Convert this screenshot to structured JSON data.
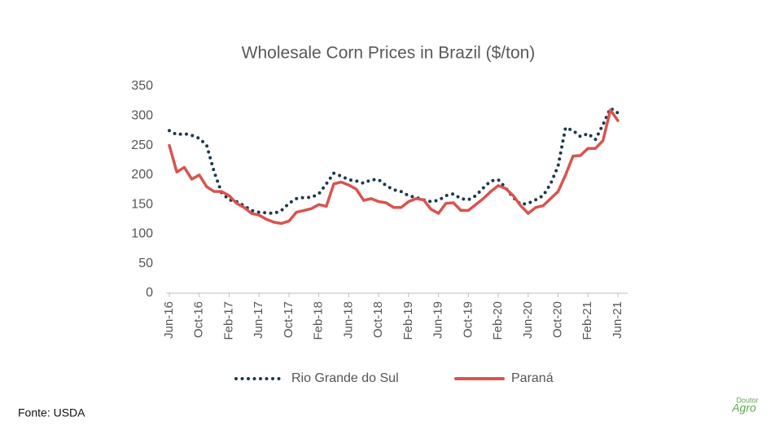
{
  "chart_data": {
    "type": "line",
    "title": "Wholesale Corn Prices in Brazil ($/ton)",
    "categories": [
      "Jun-16",
      null,
      null,
      null,
      "Oct-16",
      null,
      null,
      null,
      "Feb-17",
      null,
      null,
      null,
      "Jun-17",
      null,
      null,
      null,
      "Oct-17",
      null,
      null,
      null,
      "Feb-18",
      null,
      null,
      null,
      "Jun-18",
      null,
      null,
      null,
      "Oct-18",
      null,
      null,
      null,
      "Feb-19",
      null,
      null,
      null,
      "Jun-19",
      null,
      null,
      null,
      "Oct-19",
      null,
      null,
      null,
      "Feb-20",
      null,
      null,
      null,
      "Jun-20",
      null,
      null,
      null,
      "Oct-20",
      null,
      null,
      null,
      "Feb-21",
      null,
      null,
      null,
      "Jun-21"
    ],
    "series": [
      {
        "name": "Rio Grande do Sul",
        "color": "#1b3a4b",
        "style": "dotted",
        "values": [
          275,
          268,
          270,
          267,
          262,
          250,
          205,
          170,
          158,
          155,
          148,
          140,
          137,
          136,
          135,
          140,
          152,
          160,
          162,
          162,
          168,
          185,
          203,
          198,
          192,
          190,
          186,
          192,
          192,
          182,
          175,
          172,
          165,
          162,
          158,
          155,
          157,
          165,
          168,
          160,
          158,
          165,
          178,
          190,
          192,
          178,
          162,
          150,
          152,
          158,
          165,
          185,
          215,
          280,
          275,
          265,
          270,
          260,
          285,
          313,
          305
        ]
      },
      {
        "name": "Paraná",
        "color": "#d9534f",
        "style": "solid",
        "values": [
          250,
          205,
          213,
          193,
          200,
          180,
          172,
          172,
          165,
          152,
          145,
          135,
          132,
          125,
          120,
          118,
          122,
          137,
          140,
          143,
          150,
          147,
          185,
          188,
          183,
          176,
          157,
          160,
          155,
          153,
          145,
          145,
          155,
          160,
          158,
          142,
          135,
          152,
          153,
          140,
          140,
          150,
          160,
          172,
          182,
          177,
          165,
          148,
          135,
          145,
          148,
          160,
          172,
          200,
          232,
          233,
          245,
          245,
          258,
          310,
          292
        ]
      }
    ],
    "ylim": [
      0,
      350
    ],
    "yticks": [
      0,
      50,
      100,
      150,
      200,
      250,
      300,
      350
    ],
    "grid": false,
    "legend": "bottom",
    "source": "Fonte: USDA",
    "logo": {
      "top": "Doutor",
      "bottom": "Agro"
    }
  }
}
